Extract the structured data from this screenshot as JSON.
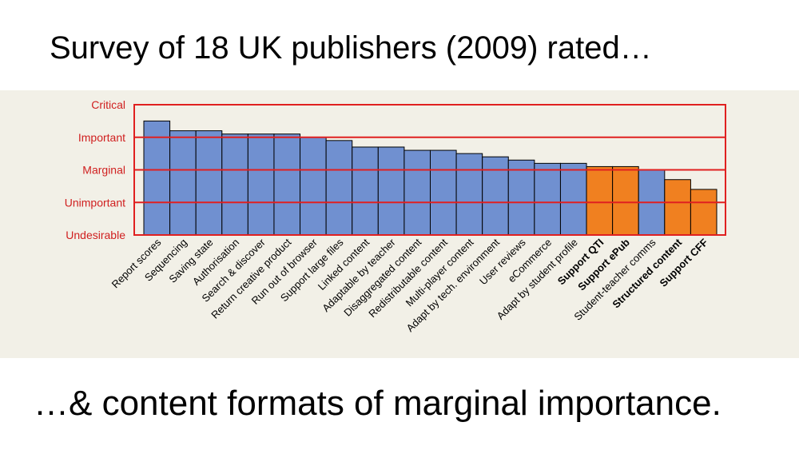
{
  "slide": {
    "title": "Survey of 18 UK publishers (2009) rated…",
    "footer": "…& content formats of marginal importance."
  },
  "colors": {
    "standard_bar": "#7090d0",
    "highlight_bar": "#f08020",
    "grid_line": "#e02020",
    "label_red": "#d02020",
    "panel_bg": "#f2f0e7"
  },
  "chart_data": {
    "type": "bar",
    "title": "",
    "xlabel": "",
    "ylabel": "",
    "y_levels": [
      "Undesirable",
      "Unimportant",
      "Marginal",
      "Important",
      "Critical"
    ],
    "ylim": [
      0,
      4
    ],
    "grid": true,
    "categories": [
      "Report scores",
      "Sequencing",
      "Saving state",
      "Authorisation",
      "Search & discover",
      "Return creative product",
      "Run out of browser",
      "Support large files",
      "Linked content",
      "Adaptable by teacher",
      "Disaggregated content",
      "Redistributable content",
      "Multi-player content",
      "Adapt by tech. environment",
      "User reviews",
      "eCommerce",
      "Adapt by student profile",
      "Support QTI",
      "Support ePub",
      "Student-teacher comms",
      "Structured content",
      "Support CFF"
    ],
    "values": [
      3.5,
      3.2,
      3.2,
      3.1,
      3.1,
      3.1,
      3.0,
      2.9,
      2.7,
      2.7,
      2.6,
      2.6,
      2.5,
      2.4,
      2.3,
      2.2,
      2.2,
      2.1,
      2.1,
      2.0,
      1.7,
      1.4
    ],
    "highlighted": [
      false,
      false,
      false,
      false,
      false,
      false,
      false,
      false,
      false,
      false,
      false,
      false,
      false,
      false,
      false,
      false,
      false,
      true,
      true,
      false,
      true,
      true
    ],
    "bold_labels": [
      false,
      false,
      false,
      false,
      false,
      false,
      false,
      false,
      false,
      false,
      false,
      false,
      false,
      false,
      false,
      false,
      false,
      true,
      true,
      false,
      true,
      true
    ]
  }
}
